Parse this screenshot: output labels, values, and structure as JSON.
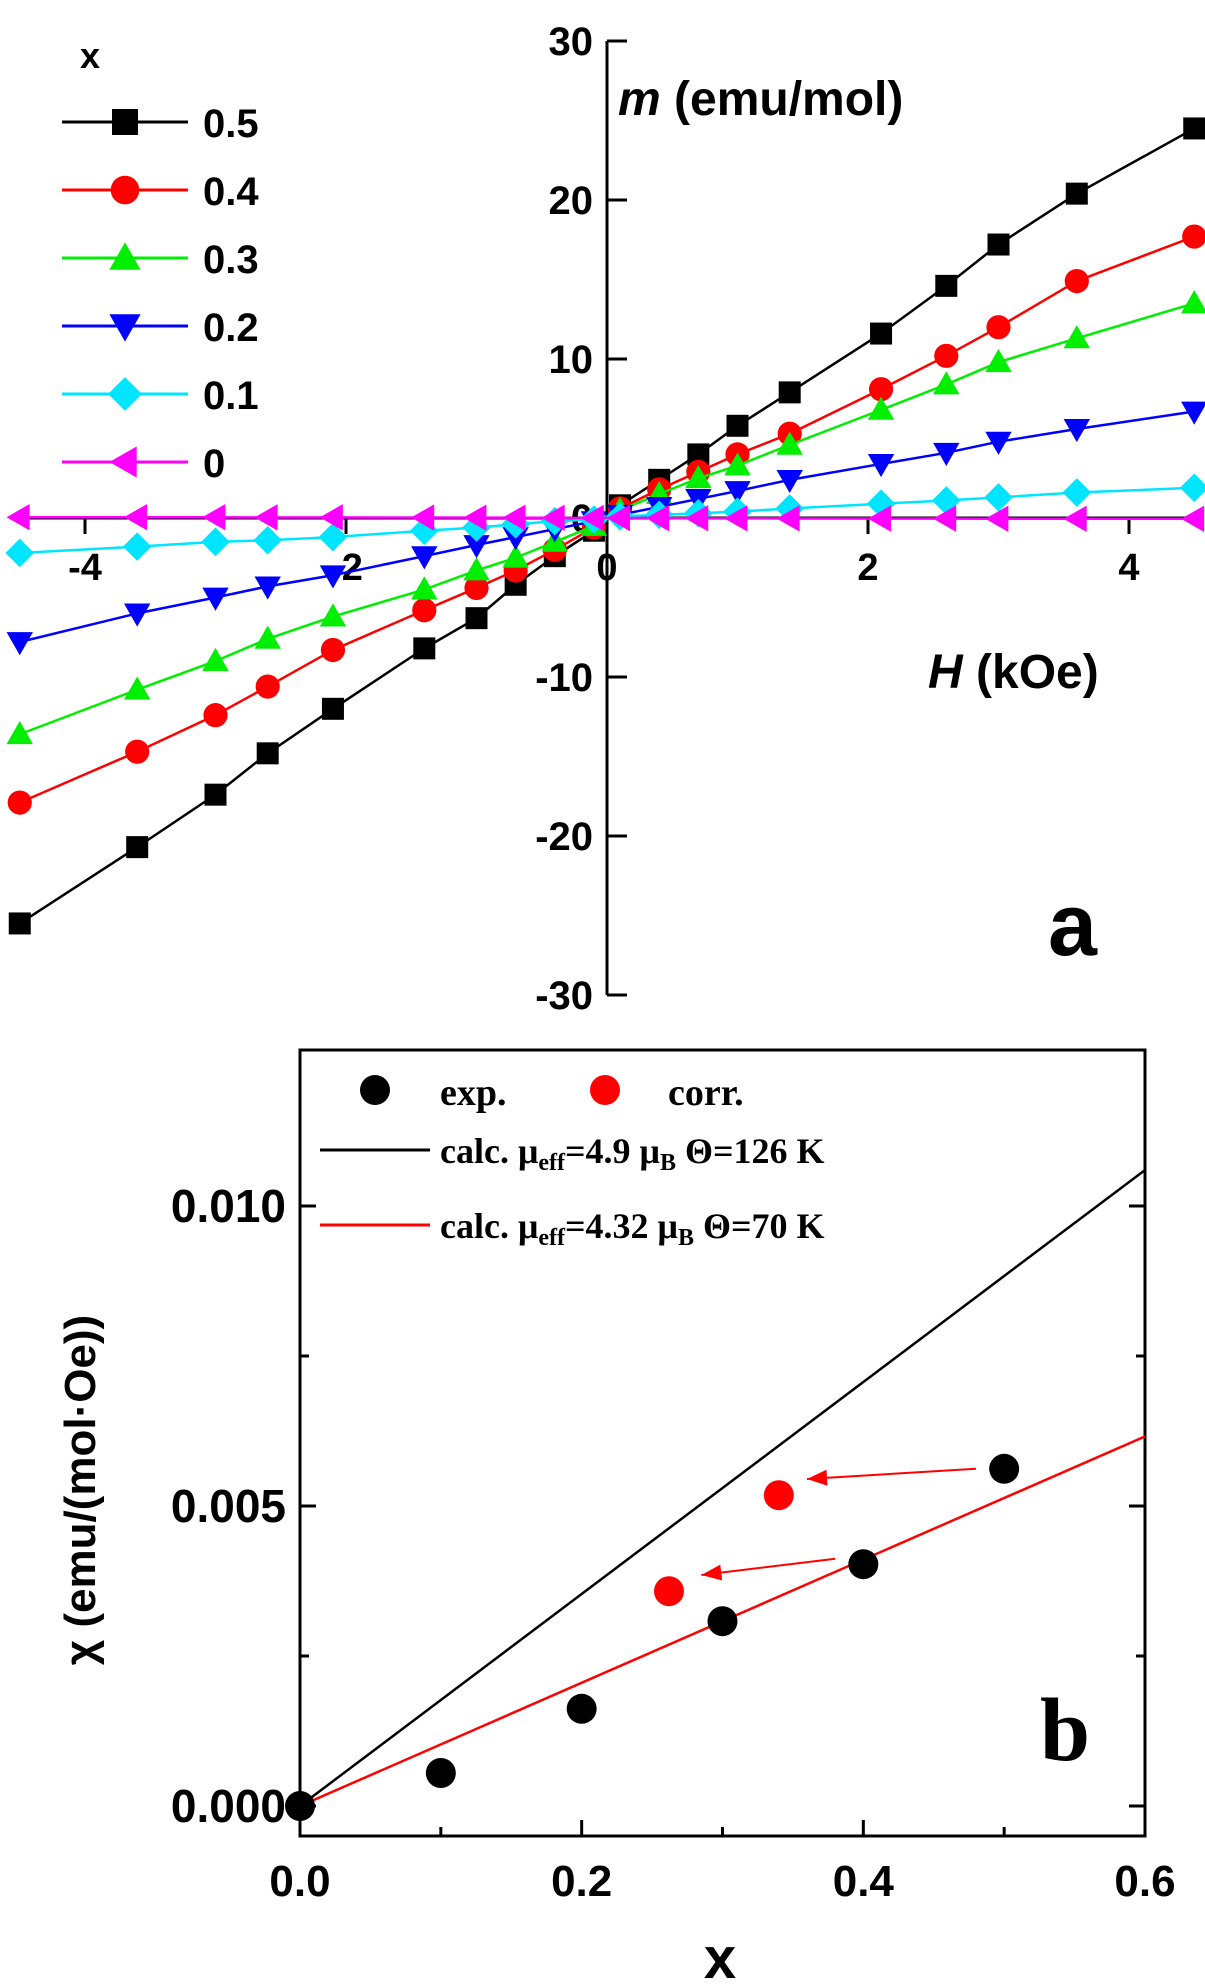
{
  "chart_data": [
    {
      "panel_label": "a",
      "type": "line",
      "title": "",
      "xlabel_symbol": "H",
      "xlabel_unit": " (kOe)",
      "ylabel_symbol": "m",
      "ylabel_unit": " (emu/mol)",
      "xlim": [
        -5.0,
        5.0
      ],
      "ylim": [
        -30,
        30
      ],
      "x_ticks": [
        -4,
        -2,
        0,
        2,
        4
      ],
      "x_tick_labels": [
        "-4",
        "-2",
        "0",
        "2",
        "4"
      ],
      "y_ticks": [
        -30,
        -20,
        -10,
        0,
        10,
        20,
        30
      ],
      "y_tick_labels": [
        "-30",
        "-20",
        "-10",
        "0",
        "10",
        "20",
        "30"
      ],
      "legend_title": "x",
      "legend_position": "top-left",
      "series": [
        {
          "name": "0.5",
          "color": "#000000",
          "marker": "square",
          "x": [
            -4.5,
            -3.6,
            -3.0,
            -2.6,
            -2.1,
            -1.4,
            -1.0,
            -0.7,
            -0.4,
            -0.1,
            0.1,
            0.4,
            0.7,
            1.0,
            1.4,
            2.1,
            2.6,
            3.0,
            3.6,
            4.5
          ],
          "y": [
            -25.5,
            -20.7,
            -17.4,
            -14.8,
            -12.0,
            -8.2,
            -6.3,
            -4.2,
            -2.4,
            -0.8,
            0.8,
            2.4,
            4.0,
            5.8,
            7.9,
            11.6,
            14.6,
            17.2,
            20.4,
            24.5
          ]
        },
        {
          "name": "0.4",
          "color": "#ff0000",
          "marker": "circle",
          "x": [
            -4.5,
            -3.6,
            -3.0,
            -2.6,
            -2.1,
            -1.4,
            -1.0,
            -0.7,
            -0.4,
            -0.1,
            0.1,
            0.4,
            0.7,
            1.0,
            1.4,
            2.1,
            2.6,
            3.0,
            3.6,
            4.5
          ],
          "y": [
            -17.9,
            -14.7,
            -12.4,
            -10.6,
            -8.3,
            -5.8,
            -4.4,
            -3.3,
            -2.0,
            -0.6,
            0.6,
            1.8,
            2.9,
            4.0,
            5.3,
            8.1,
            10.2,
            12.0,
            14.9,
            17.7
          ]
        },
        {
          "name": "0.3",
          "color": "#00ee00",
          "marker": "triangle-up",
          "x": [
            -4.5,
            -3.6,
            -3.0,
            -2.6,
            -2.1,
            -1.4,
            -1.0,
            -0.7,
            -0.4,
            -0.1,
            0.1,
            0.4,
            0.7,
            1.0,
            1.4,
            2.1,
            2.6,
            3.0,
            3.6,
            4.5
          ],
          "y": [
            -13.6,
            -10.8,
            -9.0,
            -7.6,
            -6.2,
            -4.5,
            -3.3,
            -2.5,
            -1.5,
            -0.5,
            0.5,
            1.5,
            2.5,
            3.3,
            4.6,
            6.8,
            8.4,
            9.8,
            11.3,
            13.5
          ]
        },
        {
          "name": "0.2",
          "color": "#0000ff",
          "marker": "triangle-down",
          "x": [
            -4.5,
            -3.6,
            -3.0,
            -2.6,
            -2.1,
            -1.4,
            -1.0,
            -0.7,
            -0.4,
            -0.1,
            0.1,
            0.4,
            0.7,
            1.0,
            1.4,
            2.1,
            2.6,
            3.0,
            3.6,
            4.5
          ],
          "y": [
            -7.8,
            -6.0,
            -5.0,
            -4.3,
            -3.6,
            -2.4,
            -1.7,
            -1.2,
            -0.7,
            -0.2,
            0.2,
            0.7,
            1.2,
            1.7,
            2.4,
            3.4,
            4.1,
            4.8,
            5.6,
            6.7
          ]
        },
        {
          "name": "0.1",
          "color": "#00e5ff",
          "marker": "diamond",
          "x": [
            -4.5,
            -3.6,
            -3.0,
            -2.6,
            -2.1,
            -1.4,
            -1.0,
            -0.7,
            -0.4,
            -0.1,
            0.1,
            0.4,
            0.7,
            1.0,
            1.4,
            2.1,
            2.6,
            3.0,
            3.6,
            4.5
          ],
          "y": [
            -2.2,
            -1.8,
            -1.5,
            -1.4,
            -1.2,
            -0.8,
            -0.6,
            -0.4,
            -0.2,
            -0.1,
            0.1,
            0.2,
            0.3,
            0.4,
            0.6,
            0.9,
            1.1,
            1.3,
            1.6,
            1.9
          ]
        },
        {
          "name": "0",
          "color": "#ff00ff",
          "marker": "triangle-left",
          "x": [
            -4.5,
            -3.6,
            -3.0,
            -2.6,
            -2.1,
            -1.4,
            -1.0,
            -0.7,
            -0.4,
            -0.1,
            0.1,
            0.4,
            0.7,
            1.0,
            1.4,
            2.1,
            2.6,
            3.0,
            3.6,
            4.5
          ],
          "y": [
            0.05,
            0.05,
            0.05,
            0.04,
            0.04,
            0.03,
            0.02,
            0.02,
            0.01,
            0.0,
            0.0,
            -0.01,
            -0.02,
            -0.02,
            -0.03,
            -0.04,
            -0.04,
            -0.05,
            -0.05,
            -0.05
          ]
        }
      ]
    },
    {
      "panel_label": "b",
      "type": "scatter",
      "title": "",
      "xlabel": "x",
      "ylabel": "χ (emu/(mol·Oe))",
      "xlim": [
        0.0,
        0.6
      ],
      "ylim": [
        -0.0005,
        0.0126
      ],
      "x_ticks": [
        0.0,
        0.2,
        0.4,
        0.6
      ],
      "x_tick_labels": [
        "0.0",
        "0.2",
        "0.4",
        "0.6"
      ],
      "y_ticks": [
        0.0,
        0.005,
        0.01
      ],
      "y_tick_labels": [
        "0.000",
        "0.005",
        "0.010"
      ],
      "legend_position": "top",
      "scatter_series": [
        {
          "name": "exp.",
          "color": "#000000",
          "x": [
            0.0,
            0.1,
            0.2,
            0.3,
            0.4,
            0.5
          ],
          "y": [
            0.0,
            0.00055,
            0.00162,
            0.00308,
            0.00403,
            0.00562
          ]
        },
        {
          "name": "corr.",
          "color": "#ff0000",
          "x": [
            0.262,
            0.34
          ],
          "y": [
            0.00358,
            0.00518
          ]
        }
      ],
      "line_series": [
        {
          "name_prefix": "calc. μ",
          "name_sub": "eff",
          "name_mid": "=4.9 μ",
          "name_sub2": "B",
          "name_suffix": " Θ=126 K",
          "color": "#000000",
          "x": [
            0.0,
            0.6
          ],
          "y": [
            0.0,
            0.0106
          ]
        },
        {
          "name_prefix": "calc. μ",
          "name_sub": "eff",
          "name_mid": "=4.32 μ",
          "name_sub2": "B",
          "name_suffix": " Θ=70 K",
          "color": "#ff0000",
          "x": [
            0.0,
            0.6
          ],
          "y": [
            0.0,
            0.00616
          ]
        }
      ],
      "arrows": [
        {
          "from": [
            0.48,
            0.00562
          ],
          "to": [
            0.36,
            0.00545
          ],
          "color": "#ff0000"
        },
        {
          "from": [
            0.38,
            0.00412
          ],
          "to": [
            0.285,
            0.00385
          ],
          "color": "#ff0000"
        }
      ]
    }
  ]
}
